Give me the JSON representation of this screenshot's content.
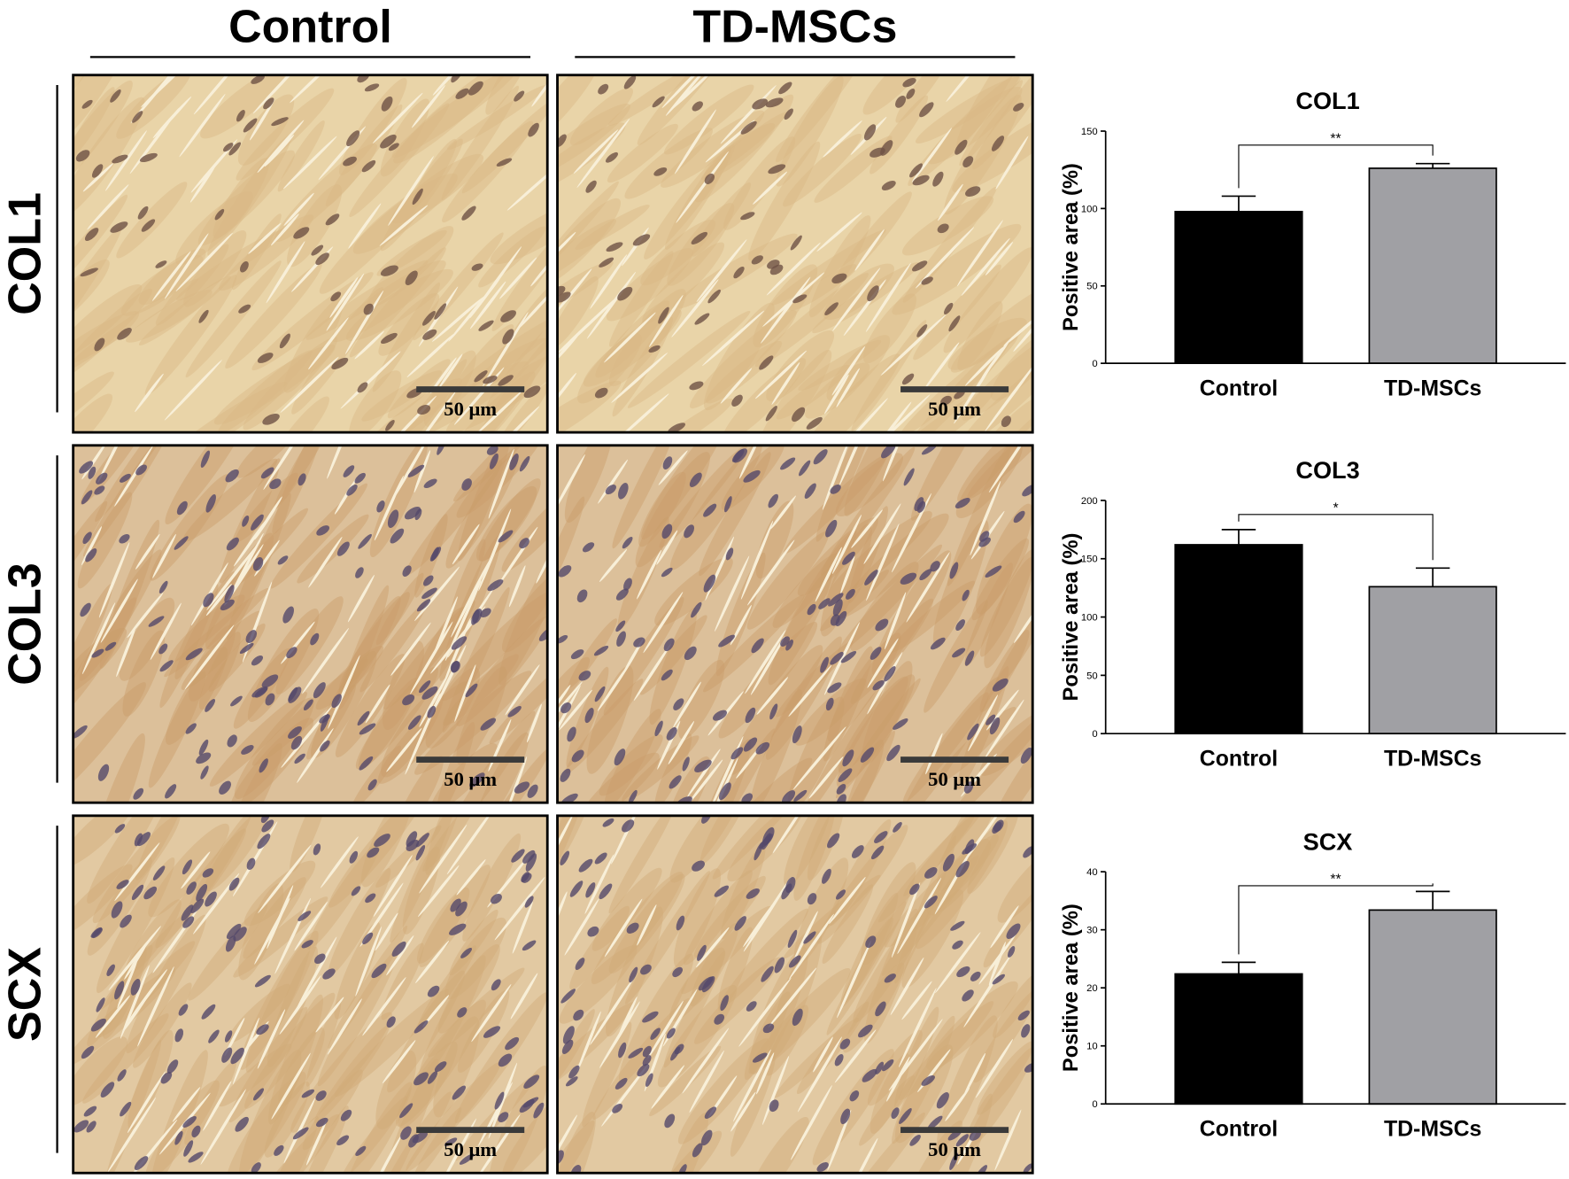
{
  "figure": {
    "column_headers": [
      "Control",
      "TD-MSCs"
    ],
    "row_labels": [
      "COL1",
      "COL3",
      "SCX"
    ],
    "scale_bar_label": "50 μm"
  },
  "chart_data": [
    {
      "type": "bar",
      "title": "COL1",
      "ylabel": "Positive area (%)",
      "categories": [
        "Control",
        "TD-MSCs"
      ],
      "values": [
        98,
        126
      ],
      "errors": [
        10,
        3
      ],
      "colors": [
        "#000000",
        "#a0a0a4"
      ],
      "ylim": [
        0,
        150
      ],
      "yticks": [
        0,
        50,
        100,
        150
      ],
      "significance": "**"
    },
    {
      "type": "bar",
      "title": "COL3",
      "ylabel": "Positive area (%)",
      "categories": [
        "Control",
        "TD-MSCs"
      ],
      "values": [
        162,
        126
      ],
      "errors": [
        13,
        16
      ],
      "colors": [
        "#000000",
        "#a0a0a4"
      ],
      "ylim": [
        0,
        200
      ],
      "yticks": [
        0,
        50,
        100,
        150,
        200
      ],
      "significance": "*"
    },
    {
      "type": "bar",
      "title": "SCX",
      "ylabel": "Positive area (%)",
      "categories": [
        "Control",
        "TD-MSCs"
      ],
      "values": [
        22.4,
        33.4
      ],
      "errors": [
        2,
        3.2
      ],
      "colors": [
        "#000000",
        "#a0a0a4"
      ],
      "ylim": [
        0,
        40
      ],
      "yticks": [
        0,
        10,
        20,
        30,
        40
      ],
      "significance": "**"
    }
  ]
}
